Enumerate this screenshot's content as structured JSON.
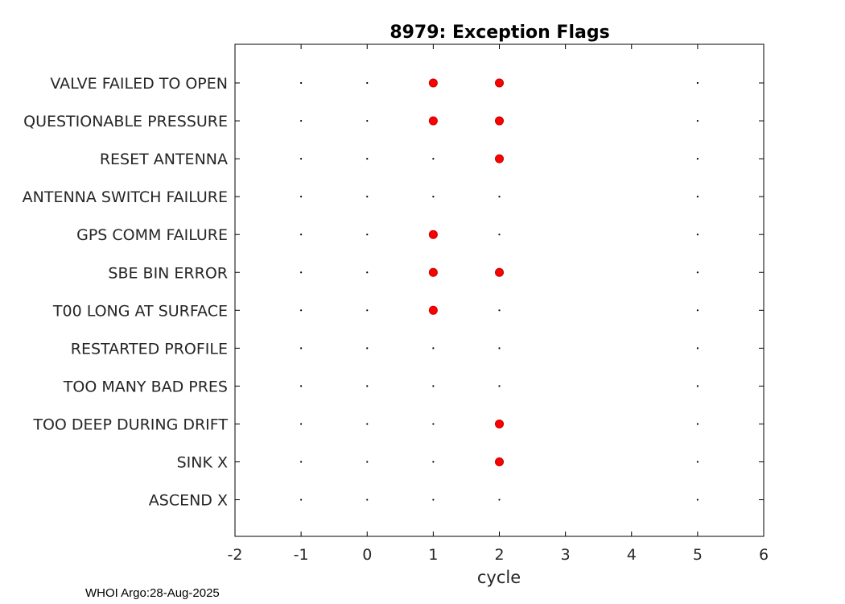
{
  "chart_data": {
    "type": "scatter",
    "title": "8979: Exception Flags",
    "xlabel": "cycle",
    "ylabel": "",
    "xlim": [
      -2,
      6
    ],
    "xticks": [
      "-2",
      "-1",
      "0",
      "1",
      "2",
      "3",
      "4",
      "5",
      "6"
    ],
    "categories": [
      "VALVE FAILED TO OPEN",
      "QUESTIONABLE PRESSURE",
      "RESET ANTENNA",
      "ANTENNA SWITCH FAILURE",
      "GPS COMM FAILURE",
      "SBE BIN ERROR",
      "T00 LONG AT SURFACE",
      "RESTARTED PROFILE",
      "TOO MANY BAD PRES",
      "TOO DEEP DURING DRIFT",
      "SINK X",
      "ASCEND X"
    ],
    "grid_x": [
      -1,
      0,
      1,
      2,
      5
    ],
    "flags": [
      {
        "category": "VALVE FAILED TO OPEN",
        "cycles": [
          1,
          2
        ]
      },
      {
        "category": "QUESTIONABLE PRESSURE",
        "cycles": [
          1,
          2
        ]
      },
      {
        "category": "RESET ANTENNA",
        "cycles": [
          2
        ]
      },
      {
        "category": "ANTENNA SWITCH FAILURE",
        "cycles": []
      },
      {
        "category": "GPS COMM FAILURE",
        "cycles": [
          1
        ]
      },
      {
        "category": "SBE BIN ERROR",
        "cycles": [
          1,
          2
        ]
      },
      {
        "category": "T00 LONG AT SURFACE",
        "cycles": [
          1
        ]
      },
      {
        "category": "RESTARTED PROFILE",
        "cycles": []
      },
      {
        "category": "TOO MANY BAD PRES",
        "cycles": []
      },
      {
        "category": "TOO DEEP DURING DRIFT",
        "cycles": [
          2
        ]
      },
      {
        "category": "SINK X",
        "cycles": [
          2
        ]
      },
      {
        "category": "ASCEND X",
        "cycles": []
      }
    ],
    "flag_color": "#ff0000"
  },
  "footer": "WHOI Argo:28-Aug-2025"
}
